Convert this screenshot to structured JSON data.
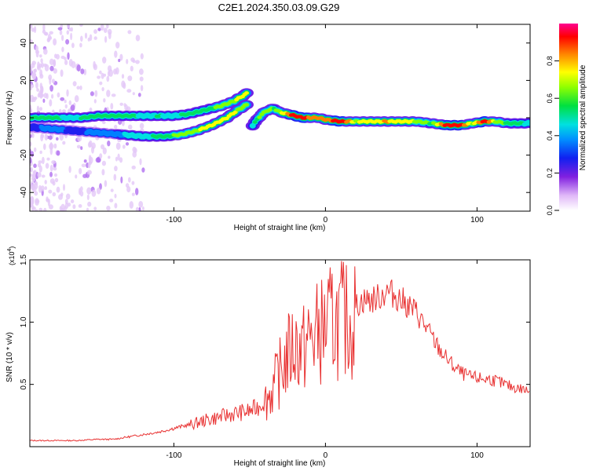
{
  "title": "C2E1.2024.350.03.09.G29",
  "colors": {
    "snr_line": "#e83030",
    "cmap": [
      "#ffffff",
      "#e8c8f8",
      "#b070f0",
      "#7020e8",
      "#2020f0",
      "#0080ff",
      "#00e0e0",
      "#00e060",
      "#80ff00",
      "#ffff00",
      "#ff8000",
      "#ff0000",
      "#ff0080"
    ]
  },
  "chart_data": [
    {
      "type": "heatmap",
      "xlabel": "Height of straight line (km)",
      "ylabel": "Frequency (Hz)",
      "xlim": [
        -195,
        135
      ],
      "ylim": [
        -50,
        50
      ],
      "x_ticks": [
        -100,
        0,
        100
      ],
      "y_ticks": [
        -40,
        -20,
        0,
        20,
        40
      ],
      "colorbar": {
        "label": "Normalized spectral amplitude",
        "range": [
          0,
          1
        ],
        "ticks": [
          "0.0",
          "0.2",
          "0.4",
          "0.6",
          "0.8"
        ]
      },
      "grid": false,
      "traces": [
        {
          "name_hint": "",
          "points": [
            [
              -195,
              0,
              0.55
            ],
            [
              -180,
              0,
              0.6
            ],
            [
              -170,
              0,
              0.5
            ],
            [
              -160,
              0,
              0.55
            ],
            [
              -150,
              1,
              0.6
            ],
            [
              -140,
              1,
              0.55
            ],
            [
              -130,
              1,
              0.6
            ],
            [
              -120,
              1,
              0.5
            ],
            [
              -110,
              1,
              0.55
            ],
            [
              -100,
              1,
              0.5
            ],
            [
              -90,
              2,
              0.6
            ],
            [
              -80,
              4,
              0.55
            ],
            [
              -70,
              6,
              0.65
            ],
            [
              -60,
              9,
              0.7
            ],
            [
              -52,
              13,
              0.75
            ]
          ]
        },
        {
          "name_hint": "",
          "points": [
            [
              -195,
              -5,
              0.35
            ],
            [
              -180,
              -6,
              0.4
            ],
            [
              -165,
              -7,
              0.35
            ],
            [
              -150,
              -8,
              0.4
            ],
            [
              -135,
              -9,
              0.45
            ],
            [
              -120,
              -10,
              0.5
            ],
            [
              -105,
              -10,
              0.6
            ],
            [
              -95,
              -9,
              0.65
            ],
            [
              -85,
              -7,
              0.7
            ],
            [
              -75,
              -4,
              0.75
            ],
            [
              -65,
              0,
              0.75
            ],
            [
              -58,
              4,
              0.7
            ],
            [
              -52,
              7,
              0.65
            ]
          ]
        },
        {
          "name_hint": "",
          "points": [
            [
              -48,
              -4,
              0.5
            ],
            [
              -45,
              -1,
              0.6
            ],
            [
              -42,
              2,
              0.7
            ],
            [
              -38,
              4,
              0.7
            ],
            [
              -34,
              5,
              0.6
            ],
            [
              -30,
              3,
              0.7
            ],
            [
              -25,
              2,
              0.8
            ],
            [
              -20,
              1,
              0.95
            ],
            [
              -15,
              0,
              0.9
            ],
            [
              -10,
              0,
              0.85
            ],
            [
              -5,
              0,
              0.85
            ],
            [
              0,
              -1,
              0.8
            ],
            [
              10,
              -2,
              0.95
            ],
            [
              20,
              -2,
              0.7
            ],
            [
              30,
              -2,
              0.75
            ],
            [
              40,
              -2,
              0.8
            ],
            [
              50,
              -2,
              0.75
            ],
            [
              60,
              -2,
              0.7
            ],
            [
              70,
              -3,
              0.6
            ],
            [
              80,
              -4,
              0.95
            ],
            [
              90,
              -4,
              0.9
            ],
            [
              97,
              -3,
              0.7
            ],
            [
              105,
              -2,
              0.95
            ],
            [
              112,
              -2,
              0.7
            ],
            [
              120,
              -3,
              0.6
            ],
            [
              130,
              -3,
              0.55
            ],
            [
              135,
              -3,
              0.5
            ]
          ]
        }
      ]
    },
    {
      "type": "line",
      "xlabel": "Height of straight line (km)",
      "ylabel": "SNR (10 * v/v)",
      "y_multiplier": "(x10",
      "y_multiplier_exp": "4",
      "xlim": [
        -195,
        135
      ],
      "ylim": [
        0,
        1.5
      ],
      "x_ticks": [
        -100,
        0,
        100
      ],
      "y_ticks": [
        "0.5",
        "1.0",
        "1.5"
      ],
      "grid": false,
      "series": [
        {
          "x": [
            -195,
            -180,
            -165,
            -150,
            -140,
            -130,
            -120,
            -110,
            -100,
            -90,
            -80,
            -70,
            -60,
            -50,
            -45,
            -40,
            -35,
            -30,
            -25,
            -20,
            -15,
            -10,
            -5,
            0,
            5,
            10,
            15,
            20,
            25,
            30,
            35,
            40,
            45,
            50,
            55,
            60,
            65,
            70,
            75,
            80,
            85,
            90,
            95,
            100,
            110,
            120,
            130,
            135
          ],
          "y": [
            0.05,
            0.05,
            0.05,
            0.06,
            0.06,
            0.08,
            0.1,
            0.12,
            0.15,
            0.18,
            0.22,
            0.25,
            0.28,
            0.3,
            0.33,
            0.4,
            0.5,
            0.65,
            0.8,
            0.9,
            0.85,
            0.95,
            1.0,
            1.05,
            1.1,
            1.12,
            1.1,
            1.15,
            1.2,
            1.2,
            1.22,
            1.27,
            1.25,
            1.2,
            1.15,
            1.1,
            1.0,
            0.9,
            0.8,
            0.72,
            0.65,
            0.6,
            0.57,
            0.56,
            0.55,
            0.5,
            0.47,
            0.45
          ]
        }
      ]
    }
  ]
}
